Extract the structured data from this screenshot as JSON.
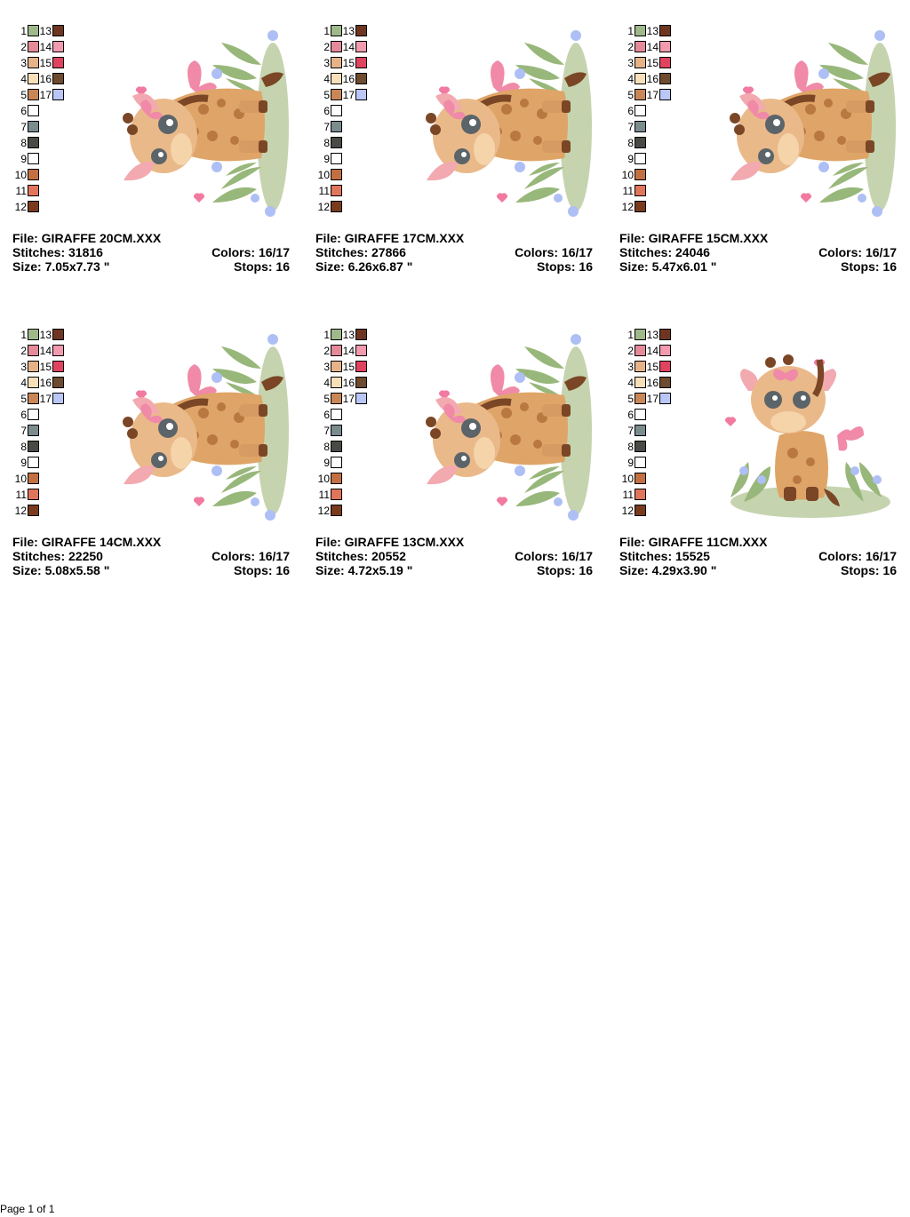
{
  "palette": {
    "swatches": [
      {
        "num": "1",
        "color": "#9fb98a"
      },
      {
        "num": "2",
        "color": "#e58a98"
      },
      {
        "num": "3",
        "color": "#e6b389"
      },
      {
        "num": "4",
        "color": "#f7dfb9"
      },
      {
        "num": "5",
        "color": "#c98757"
      },
      {
        "num": "6",
        "color": "#ffffff"
      },
      {
        "num": "7",
        "color": "#7b8c8f"
      },
      {
        "num": "8",
        "color": "#4a4a45"
      },
      {
        "num": "9",
        "color": "#ffffff"
      },
      {
        "num": "10",
        "color": "#c27042"
      },
      {
        "num": "11",
        "color": "#e0755c"
      },
      {
        "num": "12",
        "color": "#7a3a1c"
      },
      {
        "num": "13",
        "color": "#6e3620"
      },
      {
        "num": "14",
        "color": "#f29aae"
      },
      {
        "num": "15",
        "color": "#e0435f"
      },
      {
        "num": "16",
        "color": "#6e4a2e"
      },
      {
        "num": "17",
        "color": "#b9c6f7"
      }
    ]
  },
  "labels": {
    "file": "File:",
    "stitches": "Stitches:",
    "colors": "Colors:",
    "size": "Size:",
    "stops": "Stops:"
  },
  "designs": [
    {
      "file": "GIRAFFE 20CM.XXX",
      "stitches": "31816",
      "colors": "16/17",
      "size": "7.05x7.73 \"",
      "stops": "16",
      "orientation": "rotated"
    },
    {
      "file": "GIRAFFE 17CM.XXX",
      "stitches": "27866",
      "colors": "16/17",
      "size": "6.26x6.87 \"",
      "stops": "16",
      "orientation": "rotated"
    },
    {
      "file": "GIRAFFE 15CM.XXX",
      "stitches": "24046",
      "colors": "16/17",
      "size": "5.47x6.01 \"",
      "stops": "16",
      "orientation": "rotated"
    },
    {
      "file": "GIRAFFE 14CM.XXX",
      "stitches": "22250",
      "colors": "16/17",
      "size": "5.08x5.58 \"",
      "stops": "16",
      "orientation": "rotated"
    },
    {
      "file": "GIRAFFE 13CM.XXX",
      "stitches": "20552",
      "colors": "16/17",
      "size": "4.72x5.19 \"",
      "stops": "16",
      "orientation": "rotated"
    },
    {
      "file": "GIRAFFE 11CM.XXX",
      "stitches": "15525",
      "colors": "16/17",
      "size": "4.29x3.90 \"",
      "stops": "16",
      "orientation": "upright"
    }
  ],
  "footer": {
    "page": "Page 1 of 1"
  }
}
